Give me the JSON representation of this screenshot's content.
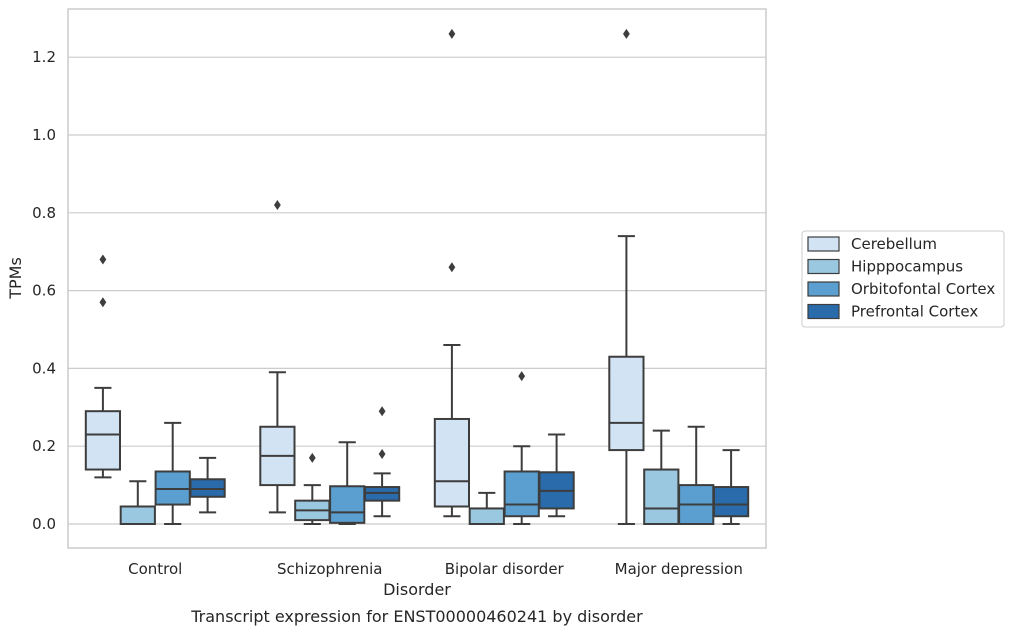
{
  "chart_data": {
    "type": "box",
    "xlabel": "Disorder",
    "ylabel": "TPMs",
    "caption": "Transcript expression for ENST00000460241 by disorder",
    "ylim": [
      -0.06,
      1.32
    ],
    "yticks": [
      "0.0",
      "0.2",
      "0.4",
      "0.6",
      "0.8",
      "1.0",
      "1.2"
    ],
    "categories": [
      "Control",
      "Schizophrenia",
      "Bipolar disorder",
      "Major depression"
    ],
    "grid": "horizontal",
    "legend_position": "right",
    "series": [
      {
        "name": "Cerebellum",
        "color": "#d2e3f3",
        "boxes": [
          {
            "whislo": 0.12,
            "q1": 0.14,
            "med": 0.23,
            "q3": 0.29,
            "whishi": 0.35,
            "fliers": [
              0.57,
              0.68
            ]
          },
          {
            "whislo": 0.03,
            "q1": 0.1,
            "med": 0.175,
            "q3": 0.25,
            "whishi": 0.39,
            "fliers": [
              0.82
            ]
          },
          {
            "whislo": 0.02,
            "q1": 0.045,
            "med": 0.11,
            "q3": 0.27,
            "whishi": 0.46,
            "fliers": [
              0.66,
              1.26
            ]
          },
          {
            "whislo": 0.0,
            "q1": 0.19,
            "med": 0.26,
            "q3": 0.43,
            "whishi": 0.74,
            "fliers": [
              1.26
            ]
          }
        ]
      },
      {
        "name": "Hipppocampus",
        "color": "#9ac8e0",
        "boxes": [
          {
            "whislo": 0.0,
            "q1": 0.0,
            "med": 0.0,
            "q3": 0.045,
            "whishi": 0.11,
            "fliers": []
          },
          {
            "whislo": 0.0,
            "q1": 0.01,
            "med": 0.035,
            "q3": 0.06,
            "whishi": 0.1,
            "fliers": [
              0.17
            ]
          },
          {
            "whislo": 0.0,
            "q1": 0.0,
            "med": 0.0,
            "q3": 0.04,
            "whishi": 0.08,
            "fliers": []
          },
          {
            "whislo": 0.0,
            "q1": 0.0,
            "med": 0.04,
            "q3": 0.14,
            "whishi": 0.24,
            "fliers": []
          }
        ]
      },
      {
        "name": "Orbitofontal Cortex",
        "color": "#5a9fcf",
        "boxes": [
          {
            "whislo": 0.0,
            "q1": 0.05,
            "med": 0.09,
            "q3": 0.135,
            "whishi": 0.26,
            "fliers": []
          },
          {
            "whislo": 0.0,
            "q1": 0.003,
            "med": 0.03,
            "q3": 0.097,
            "whishi": 0.21,
            "fliers": []
          },
          {
            "whislo": 0.0,
            "q1": 0.02,
            "med": 0.05,
            "q3": 0.135,
            "whishi": 0.2,
            "fliers": [
              0.38
            ]
          },
          {
            "whislo": 0.0,
            "q1": 0.0,
            "med": 0.05,
            "q3": 0.1,
            "whishi": 0.25,
            "fliers": []
          }
        ]
      },
      {
        "name": "Prefrontal Cortex",
        "color": "#2a6bac",
        "boxes": [
          {
            "whislo": 0.03,
            "q1": 0.07,
            "med": 0.09,
            "q3": 0.115,
            "whishi": 0.17,
            "fliers": []
          },
          {
            "whislo": 0.02,
            "q1": 0.06,
            "med": 0.08,
            "q3": 0.095,
            "whishi": 0.13,
            "fliers": [
              0.18,
              0.29
            ]
          },
          {
            "whislo": 0.02,
            "q1": 0.04,
            "med": 0.085,
            "q3": 0.133,
            "whishi": 0.23,
            "fliers": []
          },
          {
            "whislo": 0.0,
            "q1": 0.02,
            "med": 0.05,
            "q3": 0.095,
            "whishi": 0.19,
            "fliers": []
          }
        ]
      }
    ]
  }
}
